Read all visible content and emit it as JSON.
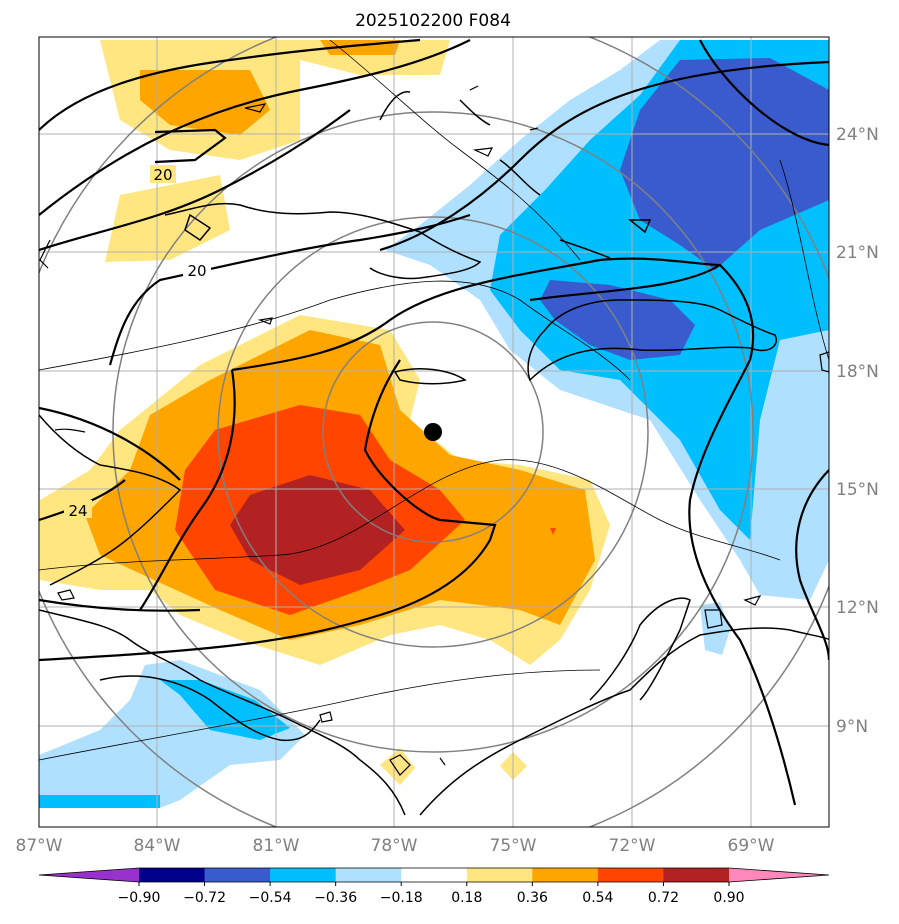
{
  "title": "2025102200 F084",
  "map": {
    "lon_labels": [
      "87°W",
      "84°W",
      "81°W",
      "78°W",
      "75°W",
      "72°W",
      "69°W"
    ],
    "lat_labels": [
      "24°N",
      "21°N",
      "18°N",
      "15°N",
      "12°N",
      "9°N"
    ],
    "contour_labels": [
      "20",
      "20",
      "24"
    ],
    "storm_center": "77.0°W 16.4°N"
  },
  "colorbar": {
    "levels": [
      "−0.90",
      "−0.72",
      "−0.54",
      "−0.36",
      "−0.18",
      "0.18",
      "0.36",
      "0.54",
      "0.72",
      "0.90"
    ],
    "colors": [
      "#9932cc",
      "#00008b",
      "#3a5bcd",
      "#00bfff",
      "#b0e0ff",
      "#ffffff",
      "#ffe680",
      "#ffa500",
      "#ff4500",
      "#b22222",
      "#ff88bb"
    ]
  }
}
